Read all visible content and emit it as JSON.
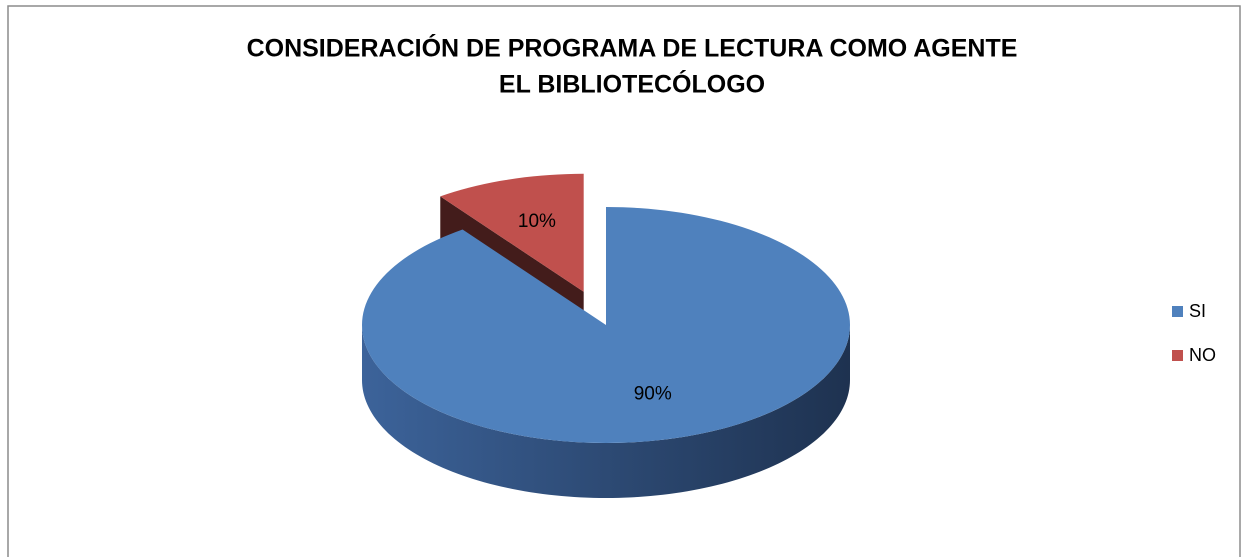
{
  "chart_data": {
    "type": "pie",
    "title": [
      "CONSIDERACIÓN DE PROGRAMA DE LECTURA COMO AGENTE",
      "EL BIBLIOTECÓLOGO"
    ],
    "categories": [
      "SI",
      "NO"
    ],
    "values": [
      90,
      10
    ],
    "value_labels": [
      "90%",
      "10%"
    ],
    "colors": [
      "#4f81bd",
      "#c0504d"
    ],
    "exploded": [
      false,
      true
    ],
    "legend": "right"
  }
}
